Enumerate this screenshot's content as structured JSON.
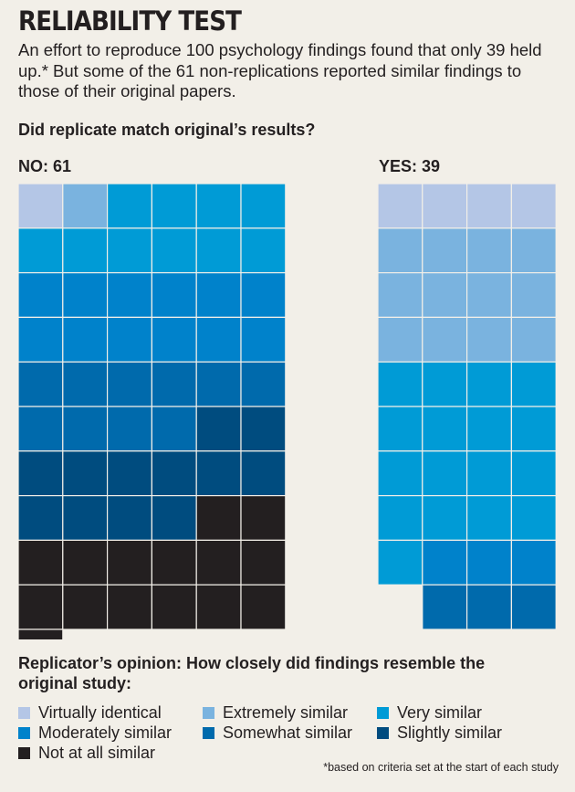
{
  "header": {
    "title": "RELIABILITY TEST",
    "subtitle": "An effort to reproduce 100 psychology findings found that only 39 held up.* But some of the 61 non-replications reported similar findings to those of their original papers.",
    "question": "Did replicate match original’s results?"
  },
  "chart_data": {
    "type": "waffle",
    "categories": [
      "Virtually identical",
      "Extremely similar",
      "Very similar",
      "Moderately similar",
      "Somewhat similar",
      "Slightly similar",
      "Not at all similar"
    ],
    "colors": [
      "#b4c6e6",
      "#7ab3df",
      "#009bd6",
      "#0082cb",
      "#006aac",
      "#004c7f",
      "#231f20"
    ],
    "groups": [
      {
        "label": "NO: 61",
        "counts": [
          1,
          1,
          10,
          12,
          10,
          12,
          15
        ]
      },
      {
        "label": "YES: 39",
        "counts": [
          4,
          12,
          17,
          3,
          3,
          0,
          0
        ]
      }
    ],
    "legend_title": "Replicator’s opinion: How closely did findings resemble the original study:"
  },
  "footnote": "*based on criteria set at the start of each study"
}
